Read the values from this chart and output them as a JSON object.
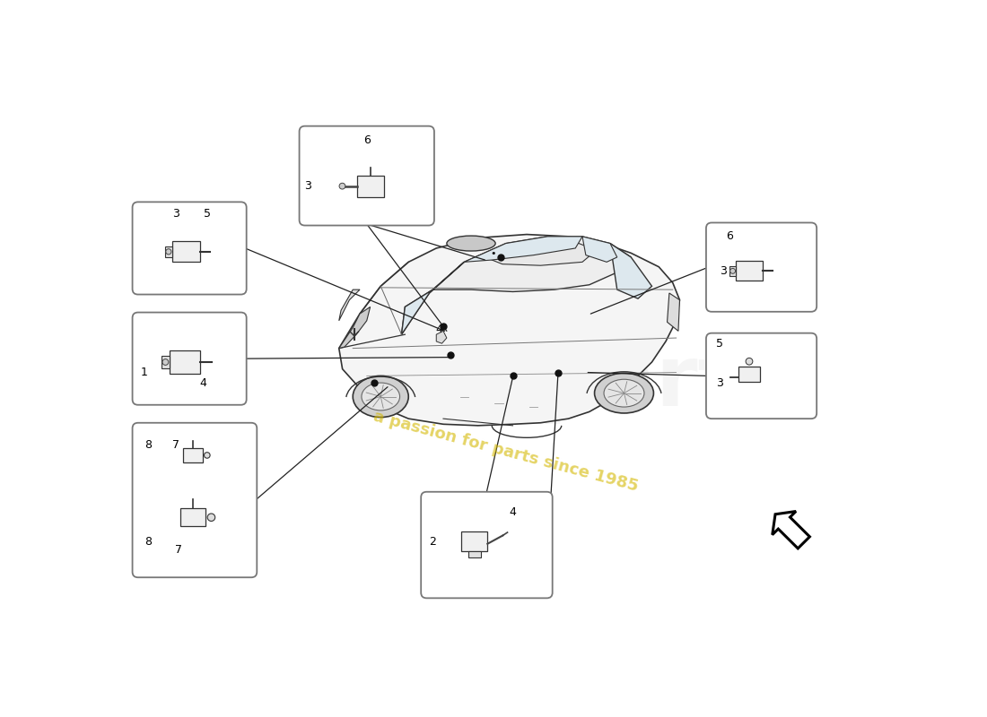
{
  "bg_color": "#ffffff",
  "car_color": "#f5f5f5",
  "car_edge": "#333333",
  "box_edge": "#888888",
  "line_color": "#222222",
  "label_color": "#000000",
  "watermark_color": "#d4b800",
  "arrow_outline": "#000000",
  "sensor_dot_color": "#111111"
}
